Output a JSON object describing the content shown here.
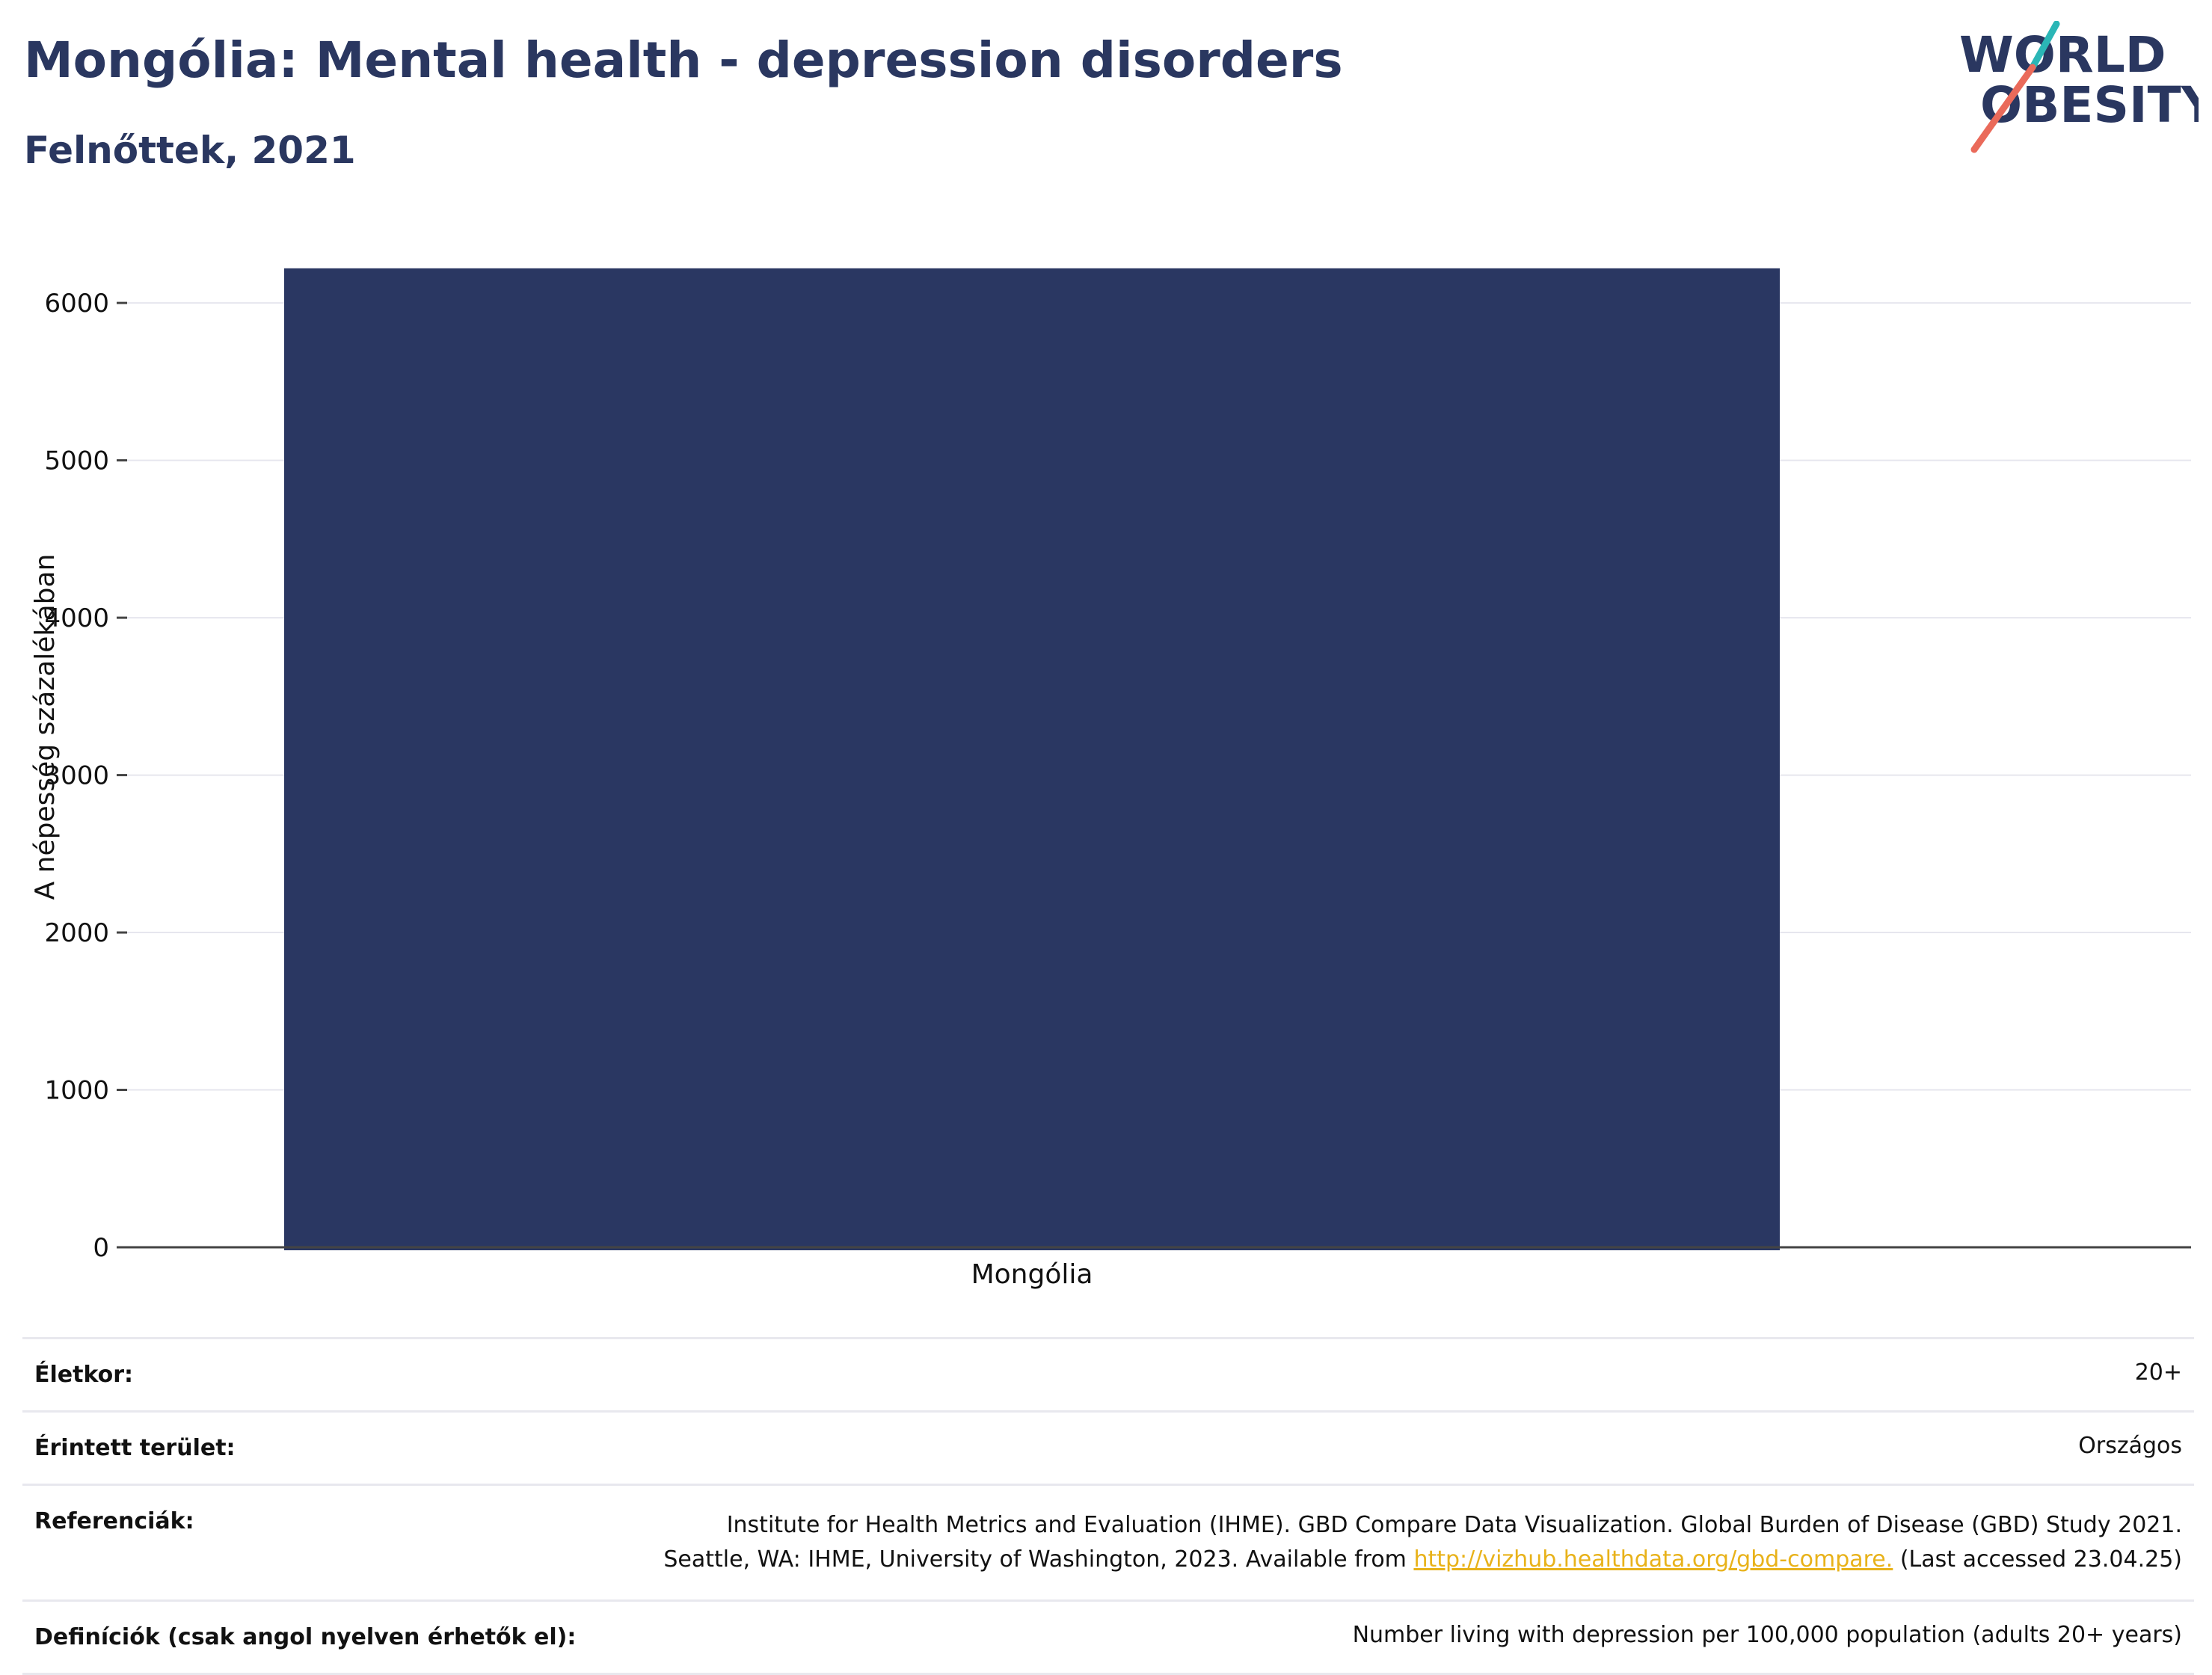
{
  "header": {
    "title": "Mongólia: Mental health - depression disorders",
    "subtitle": "Felnőttek, 2021"
  },
  "logo": {
    "line1": "WORLD",
    "line2": "OBESITY"
  },
  "colors": {
    "bar": "#2a3762",
    "title": "#2a3760",
    "grid": "#e6e6ee",
    "axis": "#444444",
    "link": "#e8b21a",
    "logo_teal": "#2bb6b6",
    "logo_coral": "#ea6a5a"
  },
  "chart_data": {
    "type": "bar",
    "categories": [
      "Mongólia"
    ],
    "values": [
      6220
    ],
    "ylabel": "A népesség százalékában",
    "xlabel": "",
    "ylim": [
      0,
      6300
    ],
    "yticks": [
      "0",
      "1000",
      "2000",
      "3000",
      "4000",
      "5000",
      "6000"
    ],
    "grid": true
  },
  "info": {
    "age_label": "Életkor:",
    "age_value": "20+",
    "area_label": "Érintett terület:",
    "area_value": "Országos",
    "ref_label": "Referenciák:",
    "ref_line1": "Institute for Health Metrics and Evaluation (IHME). GBD Compare Data Visualization. Global Burden of Disease (GBD) Study 2021.",
    "ref_line2_pre": "Seattle, WA: IHME, University of Washington, 2023. Available from ",
    "ref_link": "http://vizhub.healthdata.org/gbd-compare.",
    "ref_line2_post": " (Last accessed 23.04.25)",
    "def_label": "Definíciók (csak angol nyelven érhetők el):",
    "def_value": "Number living with depression per 100,000 population (adults 20+ years)"
  }
}
